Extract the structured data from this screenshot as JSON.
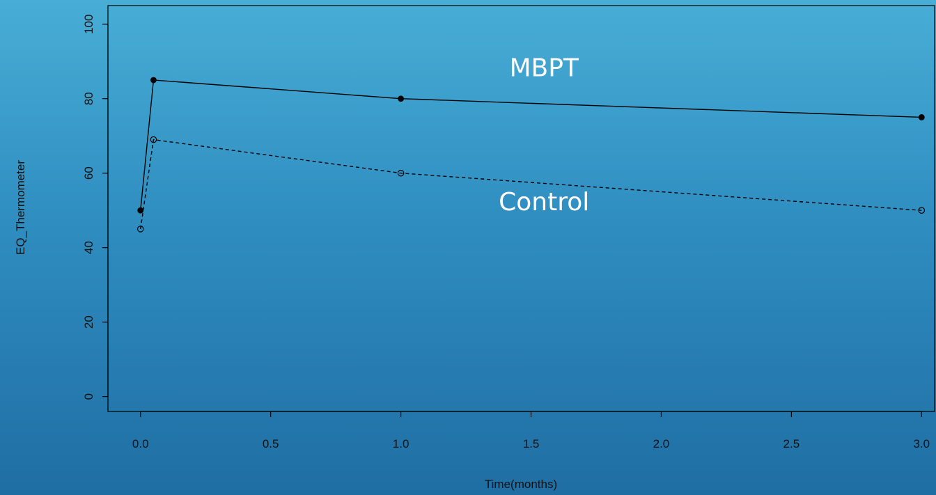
{
  "chart_data": {
    "type": "line",
    "xlabel": "Time(months)",
    "ylabel": "EQ_Thermometer",
    "xlim": [
      -0.125,
      3.05
    ],
    "ylim": [
      -4,
      105
    ],
    "xticks": [
      0.0,
      0.5,
      1.0,
      1.5,
      2.0,
      2.5,
      3.0
    ],
    "xtick_labels": [
      "0.0",
      "0.5",
      "1.0",
      "1.5",
      "2.0",
      "2.5",
      "3.0"
    ],
    "yticks": [
      0,
      20,
      40,
      60,
      80,
      100
    ],
    "ytick_labels": [
      "0",
      "20",
      "40",
      "60",
      "80",
      "100"
    ],
    "grid": false,
    "series": [
      {
        "key": "mbpt",
        "x": [
          0.0,
          0.05,
          1.0,
          3.0
        ],
        "y": [
          50,
          85,
          80,
          75
        ],
        "line_style": "solid",
        "marker": "filled-circle",
        "color": "#000000"
      },
      {
        "key": "control",
        "x": [
          0.0,
          0.05,
          1.0,
          3.0
        ],
        "y": [
          45,
          69,
          60,
          50
        ],
        "line_style": "dashed",
        "marker": "open-circle",
        "color": "#000000"
      }
    ],
    "annotations": [
      {
        "text": "MBPT",
        "x": 1.55,
        "y": 86
      },
      {
        "text": "Control",
        "x": 1.55,
        "y": 50
      }
    ]
  }
}
